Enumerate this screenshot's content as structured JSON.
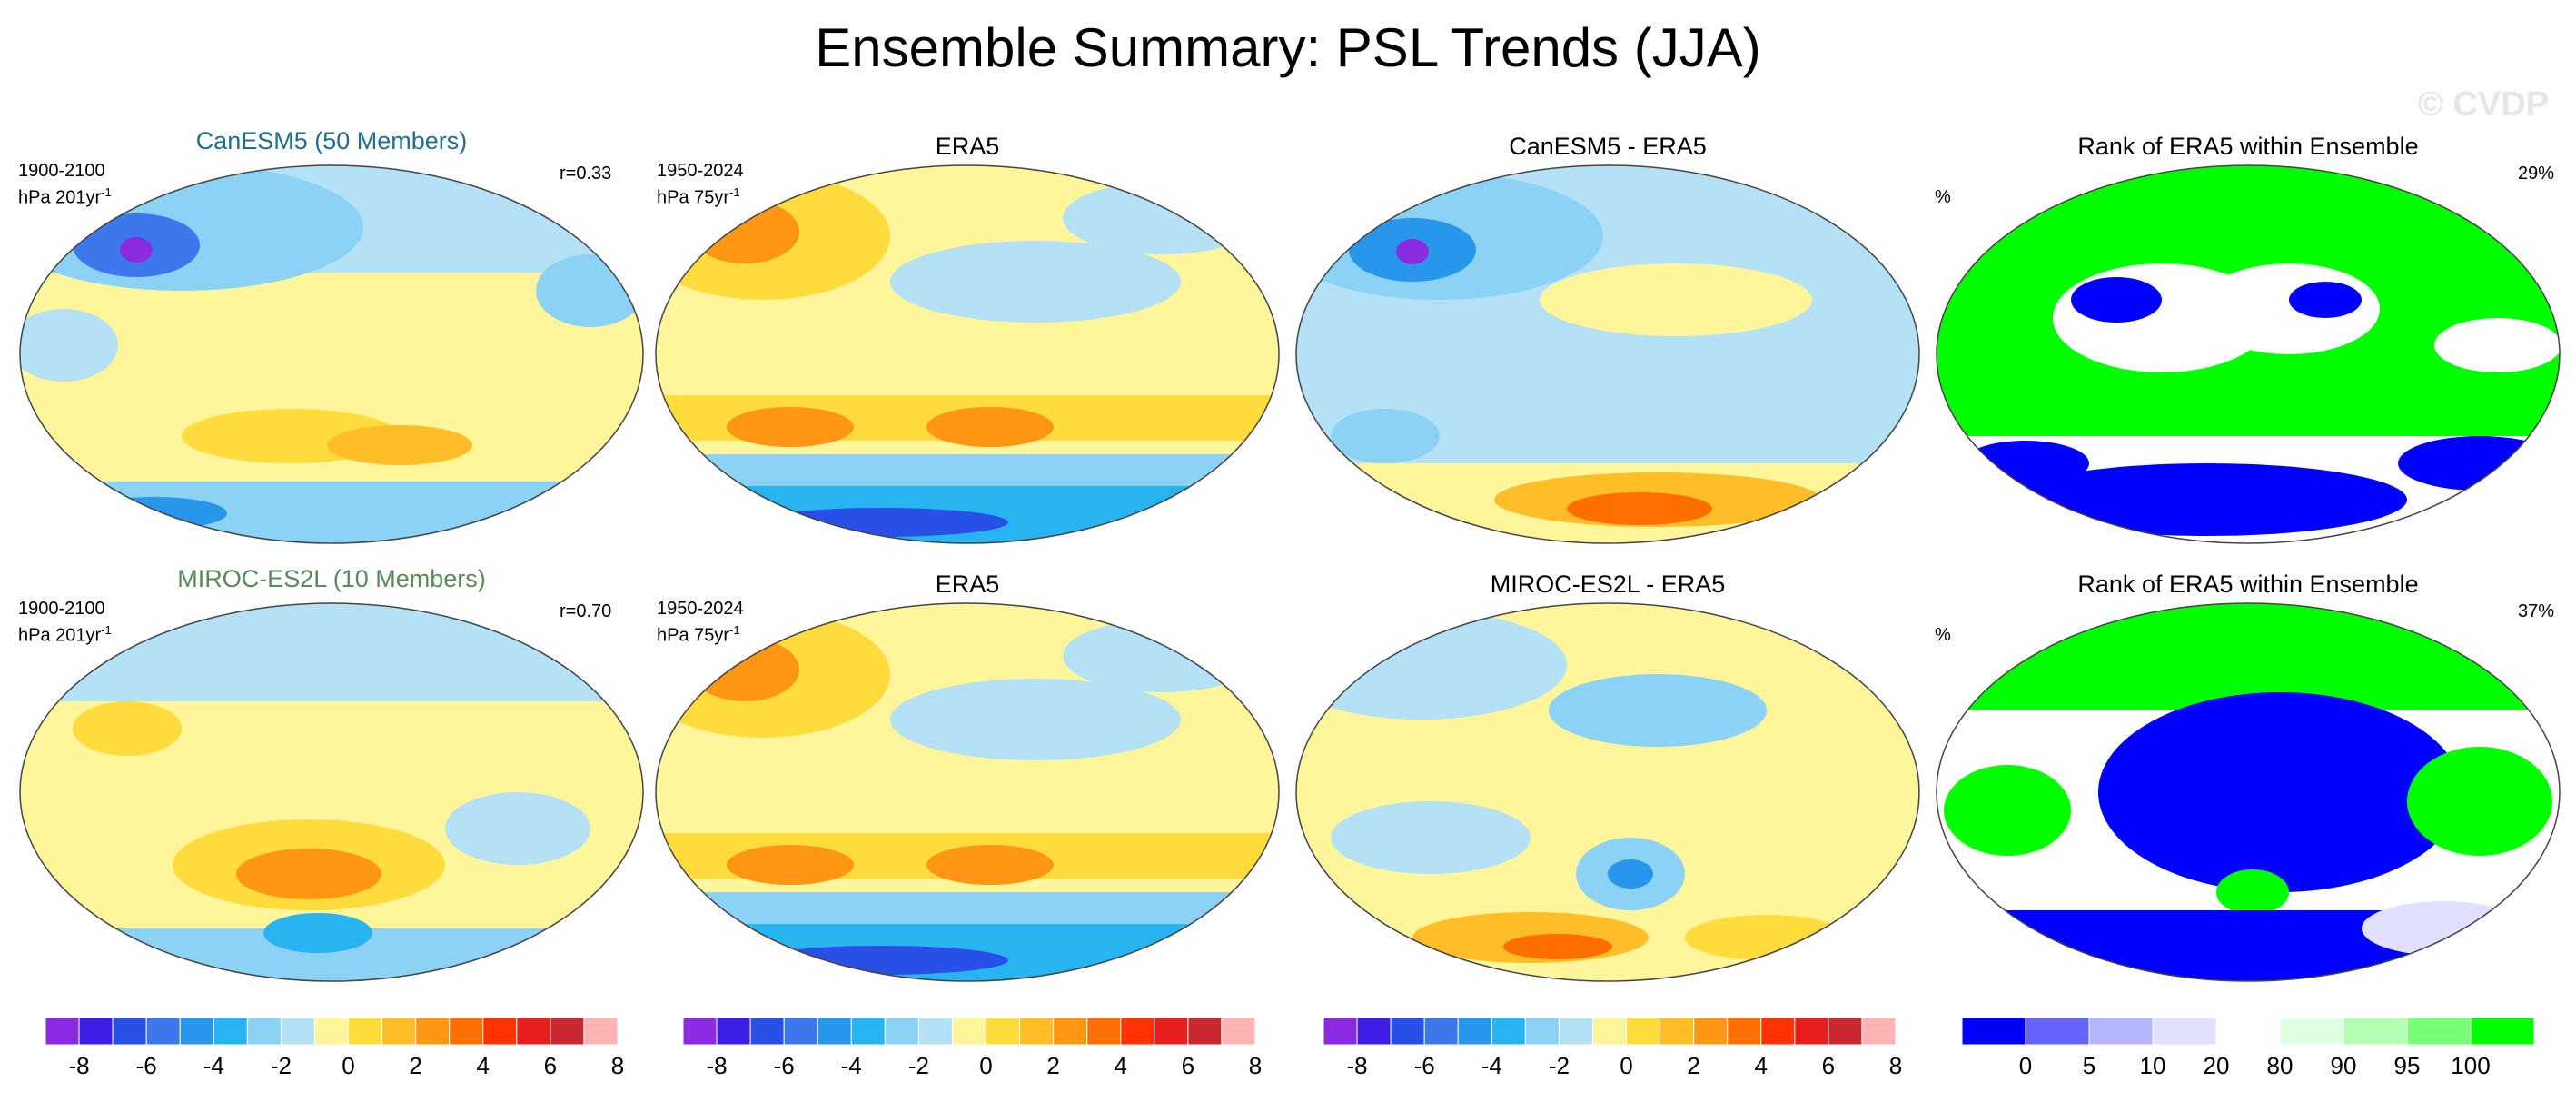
{
  "figure": {
    "title": "Ensemble Summary: PSL Trends (JJA)",
    "watermark": "© CVDP"
  },
  "rows": [
    {
      "panels": [
        {
          "title": "CanESM5 (50 Members)",
          "title_color": "#1f6f8b",
          "period": "1900-2100",
          "units": "hPa 201yr",
          "units_sup": "-1",
          "corr": "r=0.33"
        },
        {
          "title": "ERA5",
          "title_color": "#000000",
          "period": "1950-2024",
          "units": "hPa 75yr",
          "units_sup": "-1"
        },
        {
          "title": "CanESM5 - ERA5",
          "title_color": "#000000"
        },
        {
          "title": "Rank of ERA5 within Ensemble",
          "title_color": "#000000",
          "unit_label": "%",
          "pct": "29%"
        }
      ]
    },
    {
      "panels": [
        {
          "title": "MIROC-ES2L (10 Members)",
          "title_color": "#5a8a5a",
          "period": "1900-2100",
          "units": "hPa 201yr",
          "units_sup": "-1",
          "corr": "r=0.70"
        },
        {
          "title": "ERA5",
          "title_color": "#000000",
          "period": "1950-2024",
          "units": "hPa 75yr",
          "units_sup": "-1"
        },
        {
          "title": "MIROC-ES2L - ERA5",
          "title_color": "#000000"
        },
        {
          "title": "Rank of ERA5 within Ensemble",
          "title_color": "#000000",
          "unit_label": "%",
          "pct": "37%"
        }
      ]
    }
  ],
  "colorbars": {
    "trend": {
      "colors": [
        "#8a2be2",
        "#3c1ee6",
        "#2850e6",
        "#3c78eb",
        "#2896eb",
        "#28b4f0",
        "#8cd2f5",
        "#b4e1f5",
        "#fff59b",
        "#ffdc3c",
        "#ffbe28",
        "#ff9614",
        "#ff6e00",
        "#ff3200",
        "#e61e1e",
        "#c82832",
        "#ffb4b4"
      ],
      "tick_labels": [
        "-8",
        "-6",
        "-4",
        "-2",
        "0",
        "2",
        "4",
        "6",
        "8"
      ]
    },
    "rank": {
      "colors": [
        "#0000ff",
        "#6464ff",
        "#b4b4ff",
        "#e1e1ff",
        "#ffffff",
        "#e1ffe1",
        "#b4ffb4",
        "#78ff78",
        "#00ff00"
      ],
      "tick_labels": [
        "0",
        "5",
        "10",
        "20",
        "80",
        "90",
        "95",
        "100"
      ]
    }
  },
  "icons": {
    "map": "robinson-projection-globe-map"
  }
}
